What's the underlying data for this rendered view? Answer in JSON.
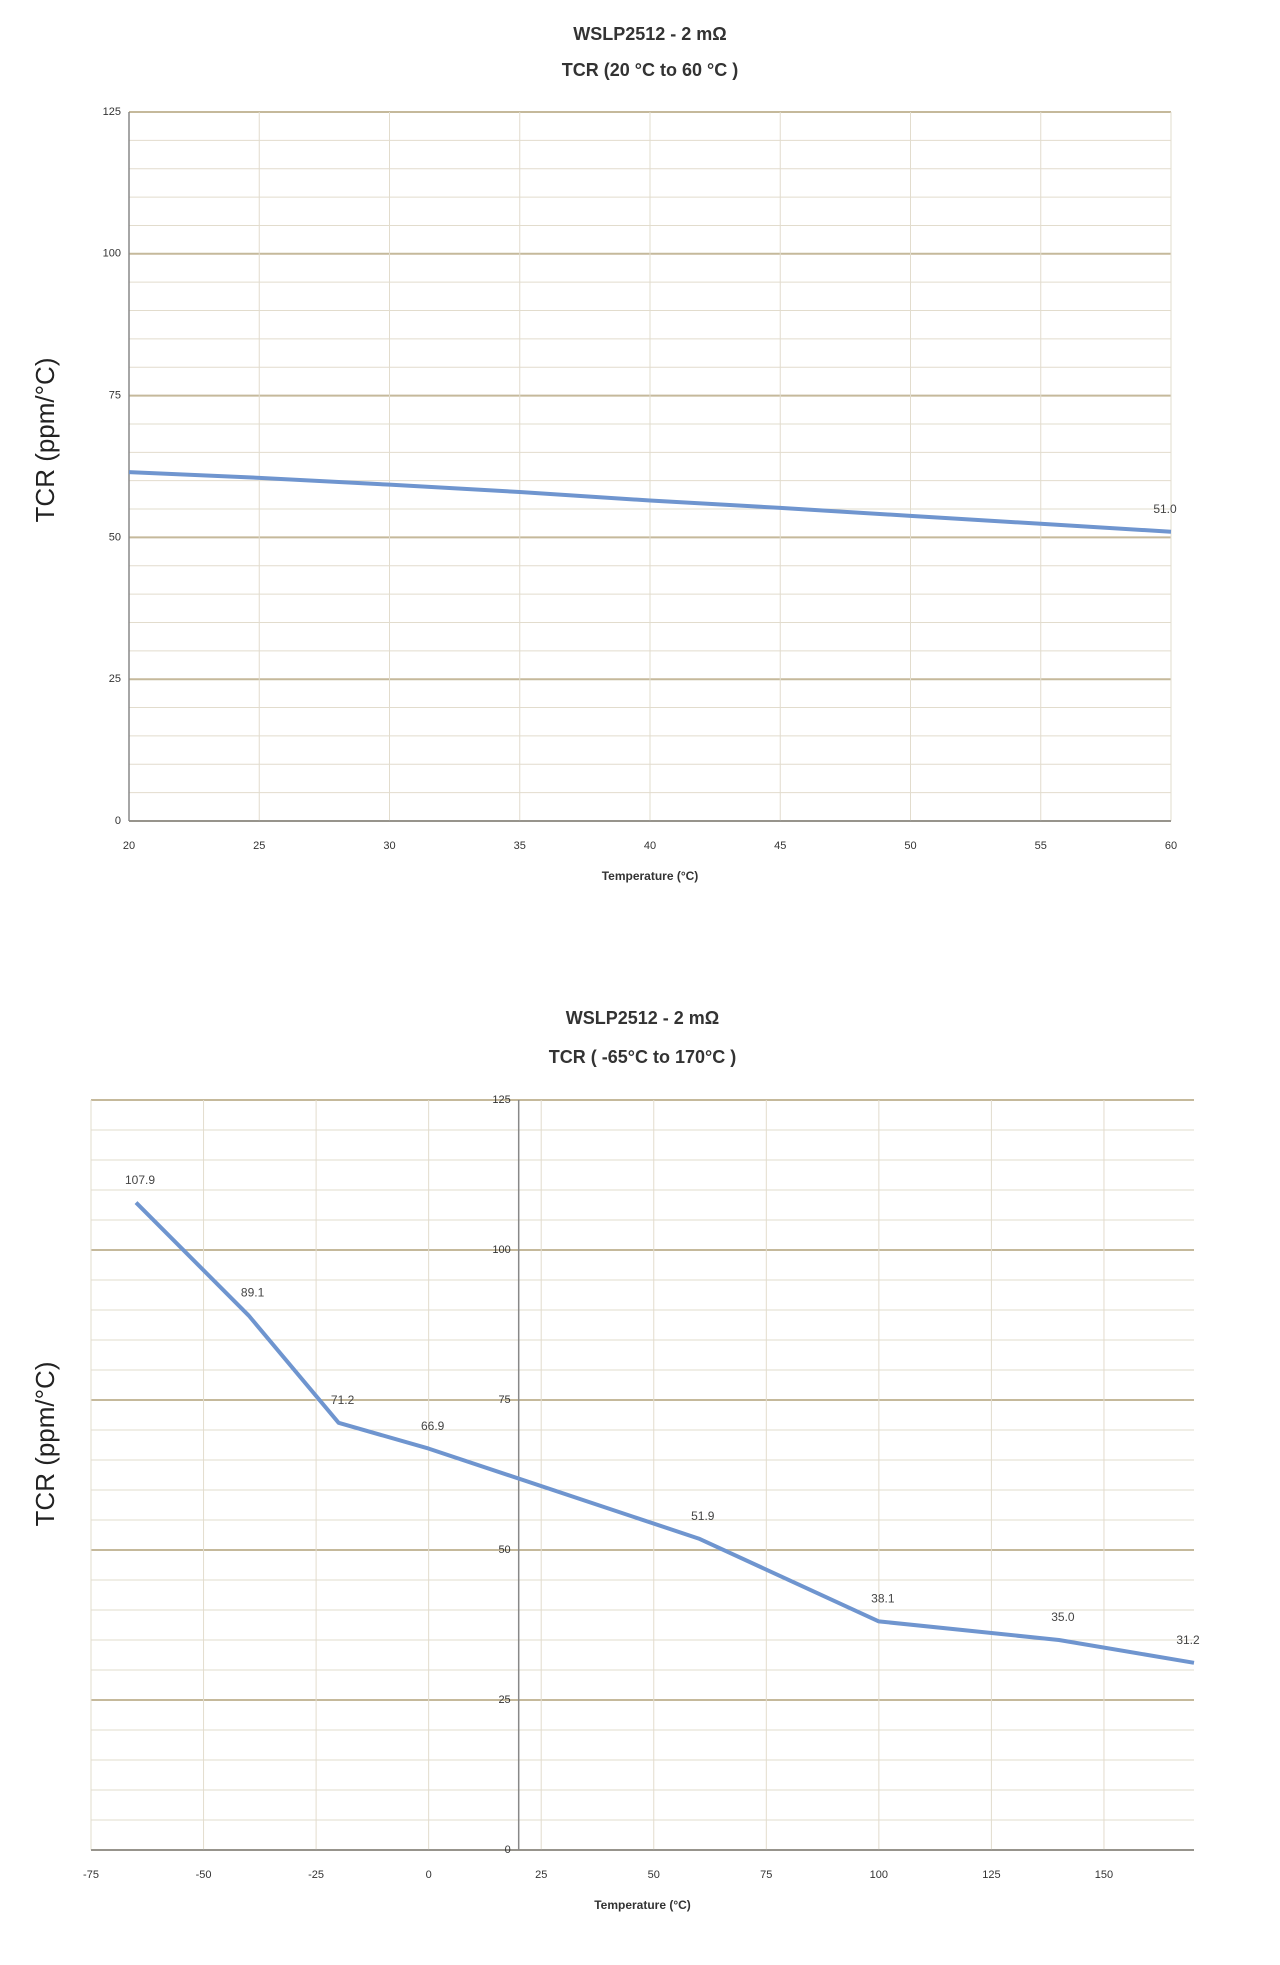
{
  "chart_data": [
    {
      "type": "line",
      "title": "WSLP2512 - 2 mΩ",
      "subtitle": "TCR (20 °C to 60 °C )",
      "xlabel": "Temperature (°C)",
      "ylabel": "TCR (ppm/°C)",
      "x": [
        20,
        25,
        30,
        35,
        40,
        45,
        50,
        55,
        60
      ],
      "series": [
        {
          "color": "#6f95cf",
          "values": [
            61.5,
            60.5,
            59.3,
            58.0,
            56.5,
            55.2,
            53.8,
            52.4,
            51.0
          ],
          "value_labels": [
            null,
            null,
            null,
            null,
            null,
            null,
            null,
            null,
            "51.0"
          ]
        }
      ],
      "xlim": [
        20,
        60
      ],
      "xticks": [
        20,
        25,
        30,
        35,
        40,
        45,
        50,
        55,
        60
      ],
      "ylim": [
        0,
        125
      ],
      "yticks": [
        0,
        25,
        50,
        75,
        100,
        125
      ],
      "grid": true,
      "minor_grid_step": 5
    },
    {
      "type": "line",
      "title": "WSLP2512 - 2 mΩ",
      "subtitle": "TCR ( -65°C to 170°C )",
      "xlabel": "Temperature (°C)",
      "ylabel": "TCR (ppm/°C)",
      "x": [
        -65,
        -40,
        -20,
        0,
        60,
        100,
        140,
        170
      ],
      "series": [
        {
          "color": "#6f95cf",
          "values": [
            107.9,
            89.1,
            71.2,
            66.9,
            51.9,
            38.1,
            35.0,
            31.2
          ],
          "value_labels": [
            "107.9",
            "89.1",
            "71.2",
            "66.9",
            "51.9",
            "38.1",
            "35.0",
            "31.2"
          ]
        }
      ],
      "xlim": [
        -75,
        170
      ],
      "xticks": [
        -75,
        -50,
        -25,
        0,
        25,
        50,
        75,
        100,
        125,
        150
      ],
      "ylim": [
        0,
        125
      ],
      "yticks": [
        0,
        25,
        50,
        75,
        100,
        125
      ],
      "grid": true,
      "minor_grid_step": 5,
      "y_axis_at": 20
    }
  ]
}
